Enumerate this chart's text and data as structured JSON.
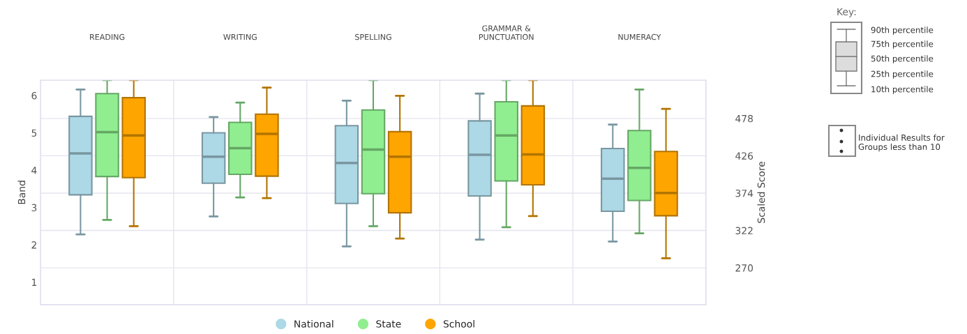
{
  "chart_data": {
    "type": "box",
    "categories": [
      "READING",
      "WRITING",
      "SPELLING",
      "GRAMMAR &\nPUNCTUATION",
      "NUMERACY"
    ],
    "ylabel": "Band",
    "y2label": "Scaled Score",
    "ylim": [
      0.4,
      6.41
    ],
    "yticks": [
      1,
      2,
      3,
      4,
      5,
      6
    ],
    "y2lim": [
      218.8,
      531.3
    ],
    "y2ticks": [
      270,
      322,
      374,
      426,
      478
    ],
    "grid": true,
    "legend": "bottom",
    "series": [
      {
        "name": "National",
        "color": "#add8e6",
        "boxes": [
          {
            "low": 2.28,
            "q1": 3.34,
            "median": 4.45,
            "q3": 5.44,
            "high": 6.16
          },
          {
            "low": 2.76,
            "q1": 3.65,
            "median": 4.36,
            "q3": 5.0,
            "high": 5.42
          },
          {
            "low": 1.96,
            "q1": 3.11,
            "median": 4.19,
            "q3": 5.19,
            "high": 5.86
          },
          {
            "low": 2.14,
            "q1": 3.31,
            "median": 4.41,
            "q3": 5.32,
            "high": 6.05
          },
          {
            "low": 2.09,
            "q1": 2.9,
            "median": 3.77,
            "q3": 4.58,
            "high": 5.22
          }
        ]
      },
      {
        "name": "State",
        "color": "#90ee90",
        "boxes": [
          {
            "low": 2.67,
            "q1": 3.83,
            "median": 5.02,
            "q3": 6.05,
            "high": 6.41
          },
          {
            "low": 3.27,
            "q1": 3.89,
            "median": 4.59,
            "q3": 5.28,
            "high": 5.81
          },
          {
            "low": 2.5,
            "q1": 3.37,
            "median": 4.55,
            "q3": 5.61,
            "high": 6.41
          },
          {
            "low": 2.47,
            "q1": 3.71,
            "median": 4.93,
            "q3": 5.83,
            "high": 6.41
          },
          {
            "low": 2.31,
            "q1": 3.19,
            "median": 4.06,
            "q3": 5.06,
            "high": 6.16
          }
        ]
      },
      {
        "name": "School",
        "color": "#ffa500",
        "boxes": [
          {
            "low": 2.5,
            "q1": 3.8,
            "median": 4.93,
            "q3": 5.94,
            "high": 6.41
          },
          {
            "low": 3.25,
            "q1": 3.84,
            "median": 4.97,
            "q3": 5.5,
            "high": 6.21
          },
          {
            "low": 2.17,
            "q1": 2.86,
            "median": 4.36,
            "q3": 5.03,
            "high": 5.99
          },
          {
            "low": 2.77,
            "q1": 3.61,
            "median": 4.42,
            "q3": 5.72,
            "high": 6.41
          },
          {
            "low": 1.64,
            "q1": 2.78,
            "median": 3.39,
            "q3": 4.5,
            "high": 5.64
          }
        ]
      }
    ],
    "annotations": [
      "Key:",
      "90th percentile",
      "75th percentile",
      "50th percentile",
      "25th percentile",
      "10th percentile",
      "Individual Results for Groups less than 10"
    ]
  }
}
